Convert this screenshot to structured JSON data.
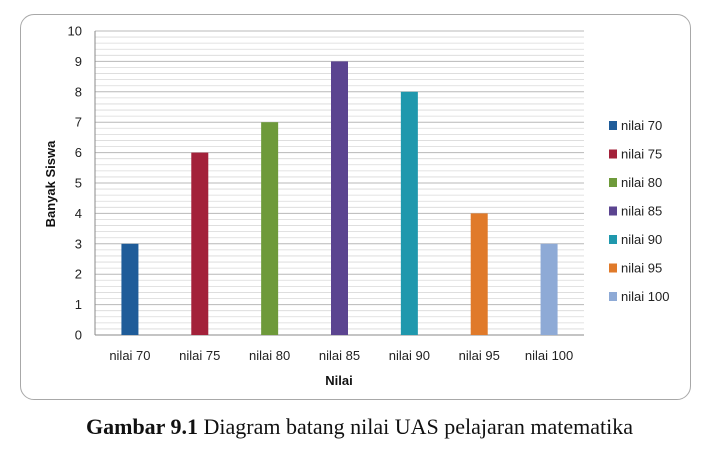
{
  "caption": {
    "label": "Gambar 9.1",
    "text": " Diagram batang nilai UAS pelajaran matematika"
  },
  "chart_data": {
    "type": "bar",
    "categories": [
      "nilai 70",
      "nilai 75",
      "nilai 80",
      "nilai 85",
      "nilai 90",
      "nilai 95",
      "nilai 100"
    ],
    "values": [
      3,
      6,
      7,
      9,
      8,
      4,
      3
    ],
    "colors": [
      "#1f5c99",
      "#a3213a",
      "#6e9a3a",
      "#5b4490",
      "#1f98ad",
      "#e07a2a",
      "#8eaad6"
    ],
    "xlabel": "Nilai",
    "ylabel": "Banyak Siswa",
    "ylim": [
      0,
      10
    ],
    "yticks": [
      "0",
      "1",
      "2",
      "3",
      "4",
      "5",
      "6",
      "7",
      "8",
      "9",
      "10"
    ],
    "grid": "horizontal minor lines",
    "legend": {
      "position": "right",
      "entries": [
        "nilai 70",
        "nilai 75",
        "nilai 80",
        "nilai 85",
        "nilai 90",
        "nilai 95",
        "nilai 100"
      ]
    }
  }
}
